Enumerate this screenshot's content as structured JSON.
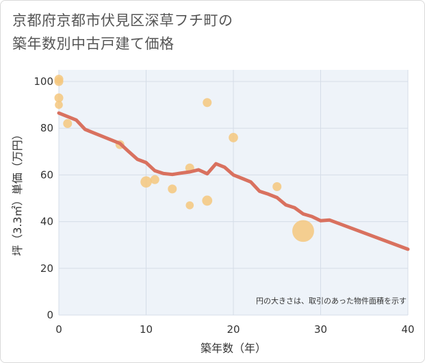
{
  "title": {
    "line1": "京都府京都市伏見区深草フチ町の",
    "line2": "築年数別中古戸建て価格"
  },
  "chart_data": {
    "type": "scatter",
    "title": "京都府京都市伏見区深草フチ町の築年数別中古戸建て価格",
    "xlabel": "築年数（年）",
    "ylabel": "坪（3.3㎡）単価（万円）",
    "xlim": [
      0,
      40
    ],
    "ylim": [
      0,
      105
    ],
    "xticks": [
      0,
      10,
      20,
      30,
      40
    ],
    "yticks": [
      0,
      20,
      40,
      60,
      80,
      100
    ],
    "grid": true,
    "note": "円の大きさは、取引のあった物件面積を示す",
    "colors": {
      "bubble": "#f5c77e",
      "line": "#d9715f",
      "grid": "#d5dde8",
      "plot_bg": "#eef3f9"
    },
    "bubbles": [
      {
        "x": 0,
        "y": 101,
        "size": 1
      },
      {
        "x": 0,
        "y": 100,
        "size": 1
      },
      {
        "x": 0,
        "y": 93,
        "size": 1
      },
      {
        "x": 0,
        "y": 90,
        "size": 0.8
      },
      {
        "x": 1,
        "y": 82,
        "size": 1
      },
      {
        "x": 7,
        "y": 73,
        "size": 1
      },
      {
        "x": 10,
        "y": 57,
        "size": 1.6
      },
      {
        "x": 11,
        "y": 58,
        "size": 1
      },
      {
        "x": 13,
        "y": 54,
        "size": 1
      },
      {
        "x": 15,
        "y": 63,
        "size": 1
      },
      {
        "x": 15,
        "y": 47,
        "size": 0.8
      },
      {
        "x": 17,
        "y": 91,
        "size": 1
      },
      {
        "x": 17,
        "y": 49,
        "size": 1.3
      },
      {
        "x": 20,
        "y": 76,
        "size": 1.1
      },
      {
        "x": 25,
        "y": 55,
        "size": 1
      },
      {
        "x": 28,
        "y": 36,
        "size": 6
      }
    ],
    "trend": {
      "x": [
        0,
        1,
        2,
        3,
        4,
        5,
        6,
        7,
        8,
        9,
        10,
        11,
        12,
        13,
        14,
        15,
        16,
        17,
        18,
        19,
        20,
        21,
        22,
        23,
        24,
        25,
        26,
        27,
        28,
        29,
        30,
        31,
        40
      ],
      "y": [
        86.5,
        85,
        83.5,
        79.5,
        78,
        76.5,
        75,
        73.5,
        70,
        66.7,
        65.3,
        61.8,
        60.6,
        60.2,
        60.8,
        61.3,
        62.2,
        60.5,
        64.8,
        63.3,
        60,
        58.5,
        57,
        53,
        51.8,
        50.3,
        47.2,
        46,
        43.3,
        42.2,
        40.4,
        40.7,
        28.2
      ]
    }
  }
}
